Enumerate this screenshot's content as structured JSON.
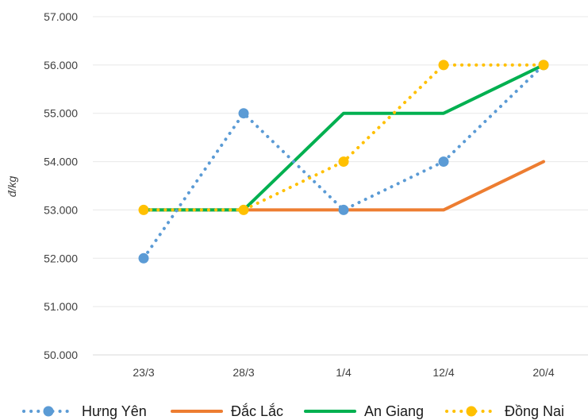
{
  "chart_data": {
    "type": "line",
    "ylabel": "đ/kg",
    "xlabel": "",
    "title": "",
    "categories": [
      "23/3",
      "28/3",
      "1/4",
      "12/4",
      "20/4"
    ],
    "ylim": [
      50000,
      57000
    ],
    "ytick_values": [
      50000,
      51000,
      52000,
      53000,
      54000,
      55000,
      56000,
      57000
    ],
    "ytick_labels": [
      "50.000",
      "51.000",
      "52.000",
      "53.000",
      "54.000",
      "55.000",
      "56.000",
      "57.000"
    ],
    "grid": true,
    "legend_position": "bottom",
    "series": [
      {
        "name": "Hưng Yên",
        "values": [
          52000,
          55000,
          53000,
          54000,
          56000
        ],
        "color": "#5b9bd5",
        "style": "dotted",
        "markers": true
      },
      {
        "name": "Đắc Lắc",
        "values": [
          53000,
          53000,
          53000,
          53000,
          54000
        ],
        "color": "#ed7d31",
        "style": "solid",
        "markers": false
      },
      {
        "name": "An Giang",
        "values": [
          53000,
          53000,
          55000,
          55000,
          56000
        ],
        "color": "#00b050",
        "style": "solid",
        "markers": false
      },
      {
        "name": "Đồng Nai",
        "values": [
          53000,
          53000,
          54000,
          56000,
          56000
        ],
        "color": "#ffc000",
        "style": "dotted",
        "markers": true
      }
    ]
  }
}
